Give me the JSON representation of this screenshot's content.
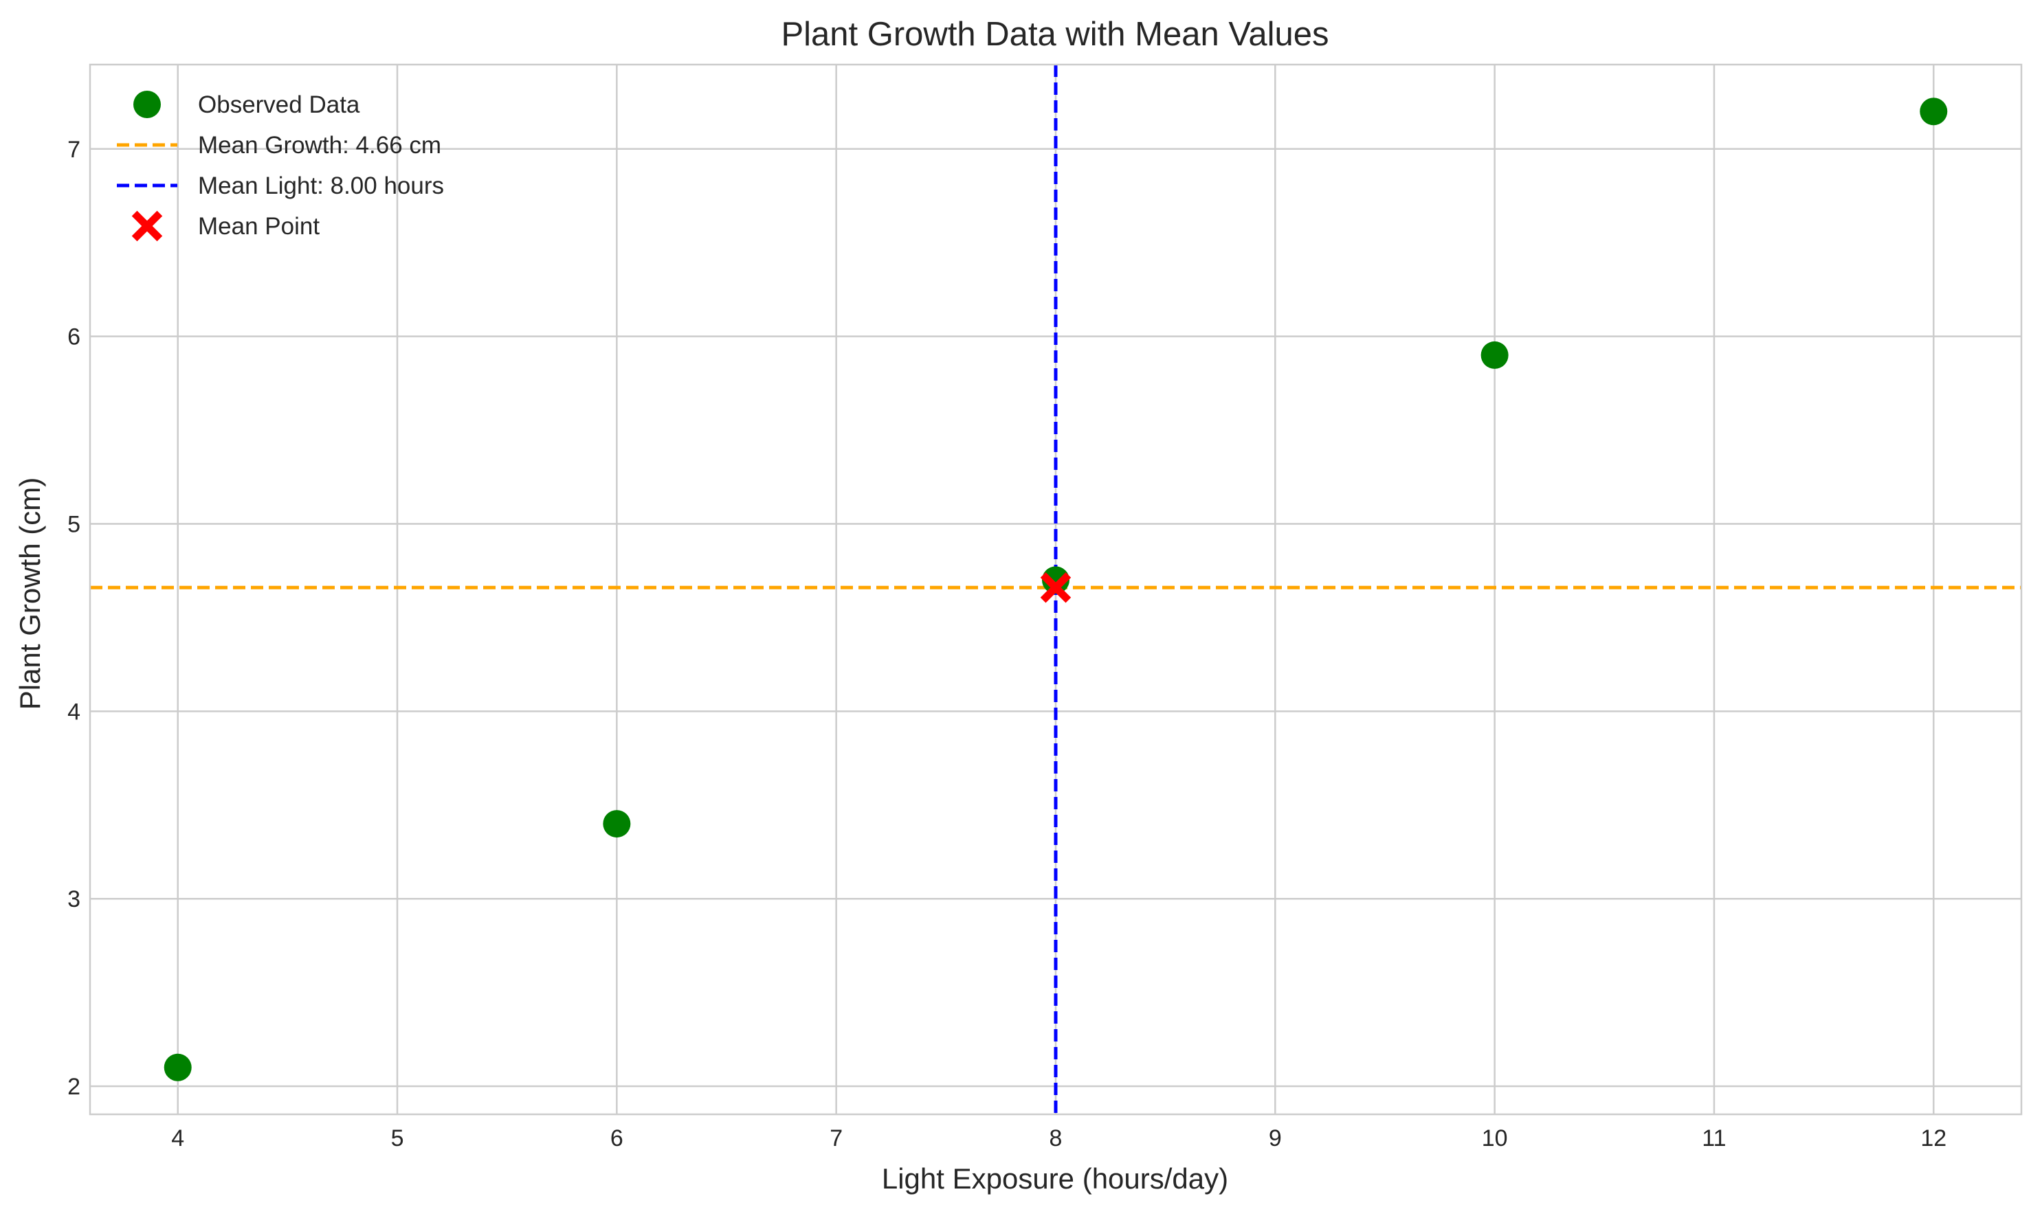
{
  "chart_data": {
    "type": "scatter",
    "title": "Plant Growth Data with Mean Values",
    "xlabel": "Light Exposure (hours/day)",
    "ylabel": "Plant Growth (cm)",
    "xlim": [
      3.6,
      12.4
    ],
    "ylim": [
      1.85,
      7.45
    ],
    "xticks": [
      4,
      5,
      6,
      7,
      8,
      9,
      10,
      11,
      12
    ],
    "yticks": [
      2,
      3,
      4,
      5,
      6,
      7
    ],
    "grid": true,
    "legend_position": "top-left",
    "series": [
      {
        "name": "Observed Data",
        "kind": "scatter",
        "marker": "circle",
        "color": "#008000",
        "x": [
          4,
          6,
          8,
          10,
          12
        ],
        "y": [
          2.1,
          3.4,
          4.7,
          5.9,
          7.2
        ]
      },
      {
        "name": "Mean Growth: 4.66 cm",
        "kind": "hline",
        "color": "#FFA500",
        "y": 4.66
      },
      {
        "name": "Mean Light: 8.00 hours",
        "kind": "vline",
        "color": "#0000FF",
        "x": 8.0
      },
      {
        "name": "Mean Point",
        "kind": "scatter",
        "marker": "x-filled",
        "color": "#FF0000",
        "x": [
          8.0
        ],
        "y": [
          4.66
        ]
      }
    ],
    "legend": [
      "Observed Data",
      "Mean Growth: 4.66 cm",
      "Mean Light: 8.00 hours",
      "Mean Point"
    ]
  }
}
